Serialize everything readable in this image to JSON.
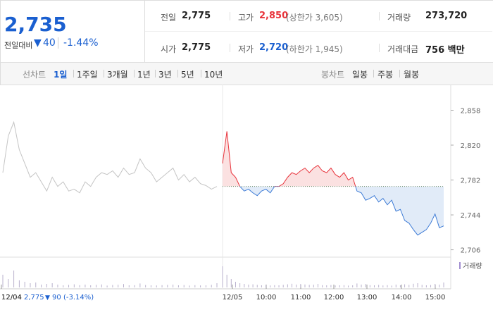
{
  "header": {
    "price": "2,735",
    "change_label": "전일대비",
    "change": "40",
    "change_pct": "-1.44%"
  },
  "stats": [
    {
      "label": "전일",
      "value": "2,775"
    },
    {
      "label": "고가",
      "value": "2,850",
      "note": "(상한가 3,605)"
    },
    {
      "label": "거래량",
      "value": "273,720"
    },
    {
      "label": "시가",
      "value": "2,775"
    },
    {
      "label": "저가",
      "value": "2,720",
      "note": "(하한가 1,945)"
    },
    {
      "label": "거래대금",
      "value": "756 백만"
    }
  ],
  "tabs": {
    "line_label": "선차트",
    "line": [
      "1일",
      "1주일",
      "3개월",
      "1년",
      "3년",
      "5년",
      "10년"
    ],
    "candle_label": "봉차트",
    "candle": [
      "일봉",
      "주봉",
      "월봉"
    ]
  },
  "chart_data": {
    "type": "line",
    "ylim": [
      2698,
      2886
    ],
    "yticks": [
      {
        "value": 2858,
        "label": "2,858"
      },
      {
        "value": 2820,
        "label": "2,820"
      },
      {
        "value": 2782,
        "label": "2,782"
      },
      {
        "value": 2744,
        "label": "2,744"
      },
      {
        "value": 2706,
        "label": "2,706"
      }
    ],
    "xtick_labels": [
      "12/04",
      "12/05",
      "10:00",
      "11:00",
      "12:00",
      "13:00",
      "14:00",
      "15:00"
    ],
    "reference": 2775,
    "series": [
      {
        "color": "#c4c4c4",
        "values": [
          2790,
          2830,
          2845,
          2815,
          2800,
          2785,
          2790,
          2780,
          2770,
          2785,
          2775,
          2780,
          2770,
          2772,
          2768,
          2780,
          2775,
          2785,
          2790,
          2788,
          2792,
          2785,
          2795,
          2788,
          2790,
          2805,
          2795,
          2790,
          2780,
          2785,
          2790,
          2795,
          2782,
          2788,
          2780,
          2785,
          2778,
          2776,
          2772,
          2775
        ],
        "volume": [
          9000,
          6000,
          12000,
          5000,
          4000,
          3000,
          3500,
          2000,
          2500,
          3000,
          2000,
          1500,
          1800,
          2200,
          1600,
          2000,
          1500,
          1800,
          2100,
          1300,
          1700,
          1900,
          2400,
          1500,
          1600,
          2800,
          1700,
          1500,
          1400,
          1600,
          1800,
          2000,
          1500,
          1700,
          1300,
          1600,
          1400,
          1500,
          1800,
          3000
        ]
      },
      {
        "up_color": "#e8333b",
        "down_color": "#3d7bd6",
        "up_fill": "#fbe1e1",
        "down_fill": "#e1ebf8",
        "values": [
          2800,
          2835,
          2790,
          2785,
          2775,
          2770,
          2772,
          2768,
          2765,
          2770,
          2772,
          2768,
          2775,
          2775,
          2778,
          2785,
          2790,
          2788,
          2792,
          2795,
          2790,
          2795,
          2798,
          2792,
          2790,
          2795,
          2788,
          2785,
          2790,
          2782,
          2785,
          2770,
          2768,
          2760,
          2762,
          2765,
          2758,
          2762,
          2755,
          2760,
          2748,
          2750,
          2738,
          2735,
          2728,
          2722,
          2725,
          2728,
          2735,
          2745,
          2730,
          2732
        ],
        "volume": [
          15000,
          9000,
          6000,
          4000,
          3000,
          2500,
          2000,
          2200,
          1800,
          1500,
          1700,
          1400,
          1600,
          1500,
          1800,
          2200,
          2600,
          2000,
          2400,
          2100,
          1800,
          1900,
          2500,
          1600,
          1500,
          1700,
          1400,
          1500,
          1600,
          1300,
          1500,
          2800,
          2000,
          2400,
          1600,
          1500,
          1800,
          1400,
          1600,
          1300,
          2000,
          1500,
          2200,
          1800,
          2600,
          3000,
          1800,
          1500,
          1700,
          2500,
          2000,
          3500
        ]
      }
    ],
    "volume_ylim": [
      0,
      20000
    ],
    "volume_label": "거래량"
  },
  "footer": {
    "date": "12/04",
    "close": "2,775",
    "change": "90",
    "pct": "(-3.14%)"
  }
}
